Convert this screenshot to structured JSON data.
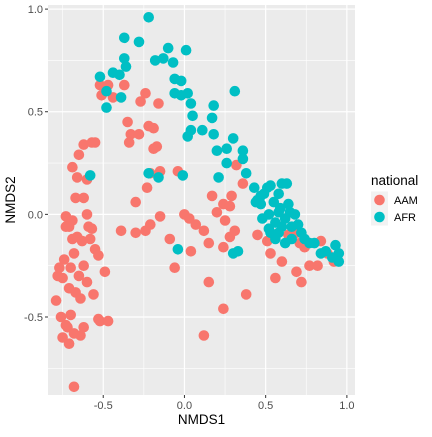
{
  "chart_data": {
    "type": "scatter",
    "xlabel": "NMDS1",
    "ylabel": "NMDS2",
    "xlim": [
      -0.84,
      1.05
    ],
    "ylim": [
      -0.88,
      1.02
    ],
    "x_ticks": [
      -0.5,
      0.0,
      0.5,
      1.0
    ],
    "x_tick_labels": [
      "-0.5",
      "0.0",
      "0.5",
      "1.0"
    ],
    "y_ticks": [
      -0.5,
      0.0,
      0.5,
      1.0
    ],
    "y_tick_labels": [
      "-0.5",
      "0.0",
      "0.5",
      "1.0"
    ],
    "grid": true,
    "panel_background": "#EBEBEB",
    "legend": {
      "title": "national",
      "placement": "right"
    },
    "series": [
      {
        "name": "AAM",
        "color": "#F8766D",
        "points": [
          [
            -0.69,
            0.23
          ],
          [
            -0.65,
            0.29
          ],
          [
            -0.62,
            0.34
          ],
          [
            -0.57,
            0.35
          ],
          [
            -0.52,
            0.63
          ],
          [
            -0.51,
            0.58
          ],
          [
            -0.47,
            0.63
          ],
          [
            -0.44,
            0.57
          ],
          [
            -0.37,
            0.63
          ],
          [
            -0.35,
            0.45
          ],
          [
            -0.33,
            0.39
          ],
          [
            -0.34,
            0.35
          ],
          [
            -0.28,
            0.39
          ],
          [
            -0.24,
            0.59
          ],
          [
            -0.27,
            0.55
          ],
          [
            -0.22,
            0.43
          ],
          [
            -0.16,
            0.54
          ],
          [
            -0.19,
            0.42
          ],
          [
            -0.17,
            0.33
          ],
          [
            -0.19,
            0.32
          ],
          [
            -0.21,
            0.2
          ],
          [
            -0.15,
            0.21
          ],
          [
            -0.23,
            0.13
          ],
          [
            -0.3,
            0.06
          ],
          [
            -0.3,
            -0.09
          ],
          [
            -0.24,
            -0.08
          ],
          [
            -0.21,
            -0.05
          ],
          [
            -0.15,
            -0.01
          ],
          [
            -0.04,
            0.21
          ],
          [
            -0.09,
            -0.12
          ],
          [
            -0.06,
            -0.26
          ],
          [
            0.0,
            0.0
          ],
          [
            0.04,
            -0.18
          ],
          [
            0.03,
            -0.02
          ],
          [
            0.07,
            -0.05
          ],
          [
            0.12,
            -0.08
          ],
          [
            0.15,
            -0.14
          ],
          [
            0.17,
            0.09
          ],
          [
            0.2,
            0.01
          ],
          [
            0.24,
            0.05
          ],
          [
            0.25,
            -0.03
          ],
          [
            0.28,
            0.04
          ],
          [
            0.29,
            0.09
          ],
          [
            0.32,
            0.24
          ],
          [
            0.36,
            0.15
          ],
          [
            0.28,
            -0.11
          ],
          [
            0.31,
            -0.08
          ],
          [
            0.24,
            -0.16
          ],
          [
            0.15,
            -0.33
          ],
          [
            0.24,
            -0.46
          ],
          [
            0.38,
            -0.39
          ],
          [
            0.45,
            -0.1
          ],
          [
            0.51,
            -0.13
          ],
          [
            0.53,
            -0.19
          ],
          [
            0.56,
            -0.31
          ],
          [
            0.6,
            -0.23
          ],
          [
            0.64,
            -0.1
          ],
          [
            0.69,
            -0.09
          ],
          [
            0.71,
            -0.14
          ],
          [
            0.69,
            -0.28
          ],
          [
            0.72,
            -0.33
          ],
          [
            0.74,
            -0.16
          ],
          [
            0.77,
            -0.25
          ],
          [
            0.82,
            -0.25
          ],
          [
            0.84,
            -0.13
          ],
          [
            0.88,
            -0.19
          ],
          [
            0.92,
            -0.23
          ],
          [
            0.12,
            -0.59
          ],
          [
            -0.79,
            -0.42
          ],
          [
            -0.72,
            -0.55
          ],
          [
            -0.74,
            -0.22
          ],
          [
            -0.78,
            -0.3
          ],
          [
            -0.75,
            -0.31
          ],
          [
            -0.71,
            -0.36
          ],
          [
            -0.77,
            -0.26
          ],
          [
            -0.73,
            -0.06
          ],
          [
            -0.69,
            -0.12
          ],
          [
            -0.68,
            -0.19
          ],
          [
            -0.7,
            -0.26
          ],
          [
            -0.65,
            -0.3
          ],
          [
            -0.67,
            -0.38
          ],
          [
            -0.64,
            -0.41
          ],
          [
            -0.62,
            -0.25
          ],
          [
            -0.6,
            -0.33
          ],
          [
            -0.58,
            -0.12
          ],
          [
            -0.57,
            -0.07
          ],
          [
            -0.6,
            0.0
          ],
          [
            -0.62,
            0.08
          ],
          [
            -0.67,
            0.08
          ],
          [
            -0.73,
            -0.01
          ],
          [
            -0.71,
            -0.06
          ],
          [
            -0.69,
            -0.03
          ],
          [
            -0.66,
            -0.11
          ],
          [
            -0.63,
            -0.13
          ],
          [
            -0.59,
            -0.06
          ],
          [
            -0.55,
            -0.17
          ],
          [
            -0.53,
            -0.2
          ],
          [
            -0.49,
            -0.28
          ],
          [
            -0.56,
            -0.39
          ],
          [
            -0.52,
            -0.52
          ],
          [
            -0.47,
            -0.52
          ],
          [
            -0.68,
            -0.58
          ],
          [
            -0.71,
            -0.63
          ],
          [
            -0.75,
            -0.6
          ],
          [
            -0.73,
            -0.54
          ],
          [
            -0.7,
            -0.49
          ],
          [
            -0.76,
            -0.5
          ],
          [
            -0.64,
            -0.59
          ],
          [
            -0.68,
            -0.84
          ],
          [
            -0.62,
            -0.55
          ],
          [
            -0.55,
            0.35
          ],
          [
            -0.6,
            0.17
          ],
          [
            -0.53,
            -0.51
          ],
          [
            -0.66,
            0.18
          ],
          [
            -0.39,
            -0.08
          ]
        ]
      },
      {
        "name": "AFR",
        "color": "#00BFC4",
        "points": [
          [
            -0.22,
            0.96
          ],
          [
            -0.37,
            0.86
          ],
          [
            -0.28,
            0.84
          ],
          [
            -0.37,
            0.76
          ],
          [
            -0.36,
            0.72
          ],
          [
            -0.44,
            0.69
          ],
          [
            -0.4,
            0.68
          ],
          [
            -0.52,
            0.67
          ],
          [
            -0.48,
            0.6
          ],
          [
            -0.39,
            0.57
          ],
          [
            -0.48,
            0.52
          ],
          [
            -0.58,
            0.19
          ],
          [
            -0.18,
            0.75
          ],
          [
            -0.1,
            0.81
          ],
          [
            -0.13,
            0.76
          ],
          [
            -0.07,
            0.74
          ],
          [
            0.01,
            0.8
          ],
          [
            -0.06,
            0.66
          ],
          [
            -0.02,
            0.65
          ],
          [
            -0.06,
            0.59
          ],
          [
            -0.02,
            0.58
          ],
          [
            0.02,
            0.59
          ],
          [
            0.04,
            0.54
          ],
          [
            0.05,
            0.48
          ],
          [
            0.04,
            0.41
          ],
          [
            0.02,
            0.38
          ],
          [
            0.11,
            0.41
          ],
          [
            0.17,
            0.47
          ],
          [
            0.18,
            0.53
          ],
          [
            0.18,
            0.39
          ],
          [
            0.2,
            0.31
          ],
          [
            0.26,
            0.32
          ],
          [
            0.3,
            0.37
          ],
          [
            0.31,
            0.6
          ],
          [
            0.36,
            0.31
          ],
          [
            0.36,
            0.27
          ],
          [
            0.26,
            0.25
          ],
          [
            0.21,
            0.18
          ],
          [
            -0.22,
            0.2
          ],
          [
            -0.16,
            0.18
          ],
          [
            -0.01,
            0.19
          ],
          [
            0.38,
            0.2
          ],
          [
            0.43,
            0.13
          ],
          [
            0.45,
            0.07
          ],
          [
            0.47,
            0.09
          ],
          [
            0.49,
            0.1
          ],
          [
            0.51,
            0.13
          ],
          [
            0.53,
            0.14
          ],
          [
            0.55,
            0.06
          ],
          [
            0.58,
            0.1
          ],
          [
            0.6,
            0.15
          ],
          [
            0.63,
            0.15
          ],
          [
            0.64,
            0.05
          ],
          [
            0.58,
            0.01
          ],
          [
            0.52,
            0.0
          ],
          [
            0.48,
            -0.02
          ],
          [
            0.47,
            0.05
          ],
          [
            0.52,
            -0.07
          ],
          [
            0.56,
            -0.04
          ],
          [
            0.58,
            -0.09
          ],
          [
            0.6,
            -0.06
          ],
          [
            0.62,
            -0.02
          ],
          [
            0.65,
            0.01
          ],
          [
            0.68,
            0.0
          ],
          [
            0.66,
            -0.06
          ],
          [
            0.7,
            -0.05
          ],
          [
            0.72,
            -0.09
          ],
          [
            0.74,
            -0.12
          ],
          [
            0.77,
            -0.14
          ],
          [
            0.8,
            -0.14
          ],
          [
            0.84,
            -0.19
          ],
          [
            0.87,
            -0.18
          ],
          [
            0.93,
            -0.15
          ],
          [
            0.95,
            -0.19
          ],
          [
            0.95,
            -0.23
          ],
          [
            0.91,
            -0.21
          ],
          [
            0.59,
            0.03
          ],
          [
            0.62,
            -0.14
          ],
          [
            0.53,
            -0.09
          ],
          [
            -0.04,
            -0.17
          ],
          [
            0.3,
            -0.19
          ],
          [
            0.33,
            -0.18
          ],
          [
            0.44,
            0.06
          ],
          [
            0.56,
            -0.12
          ],
          [
            0.66,
            -0.12
          ]
        ]
      }
    ]
  }
}
